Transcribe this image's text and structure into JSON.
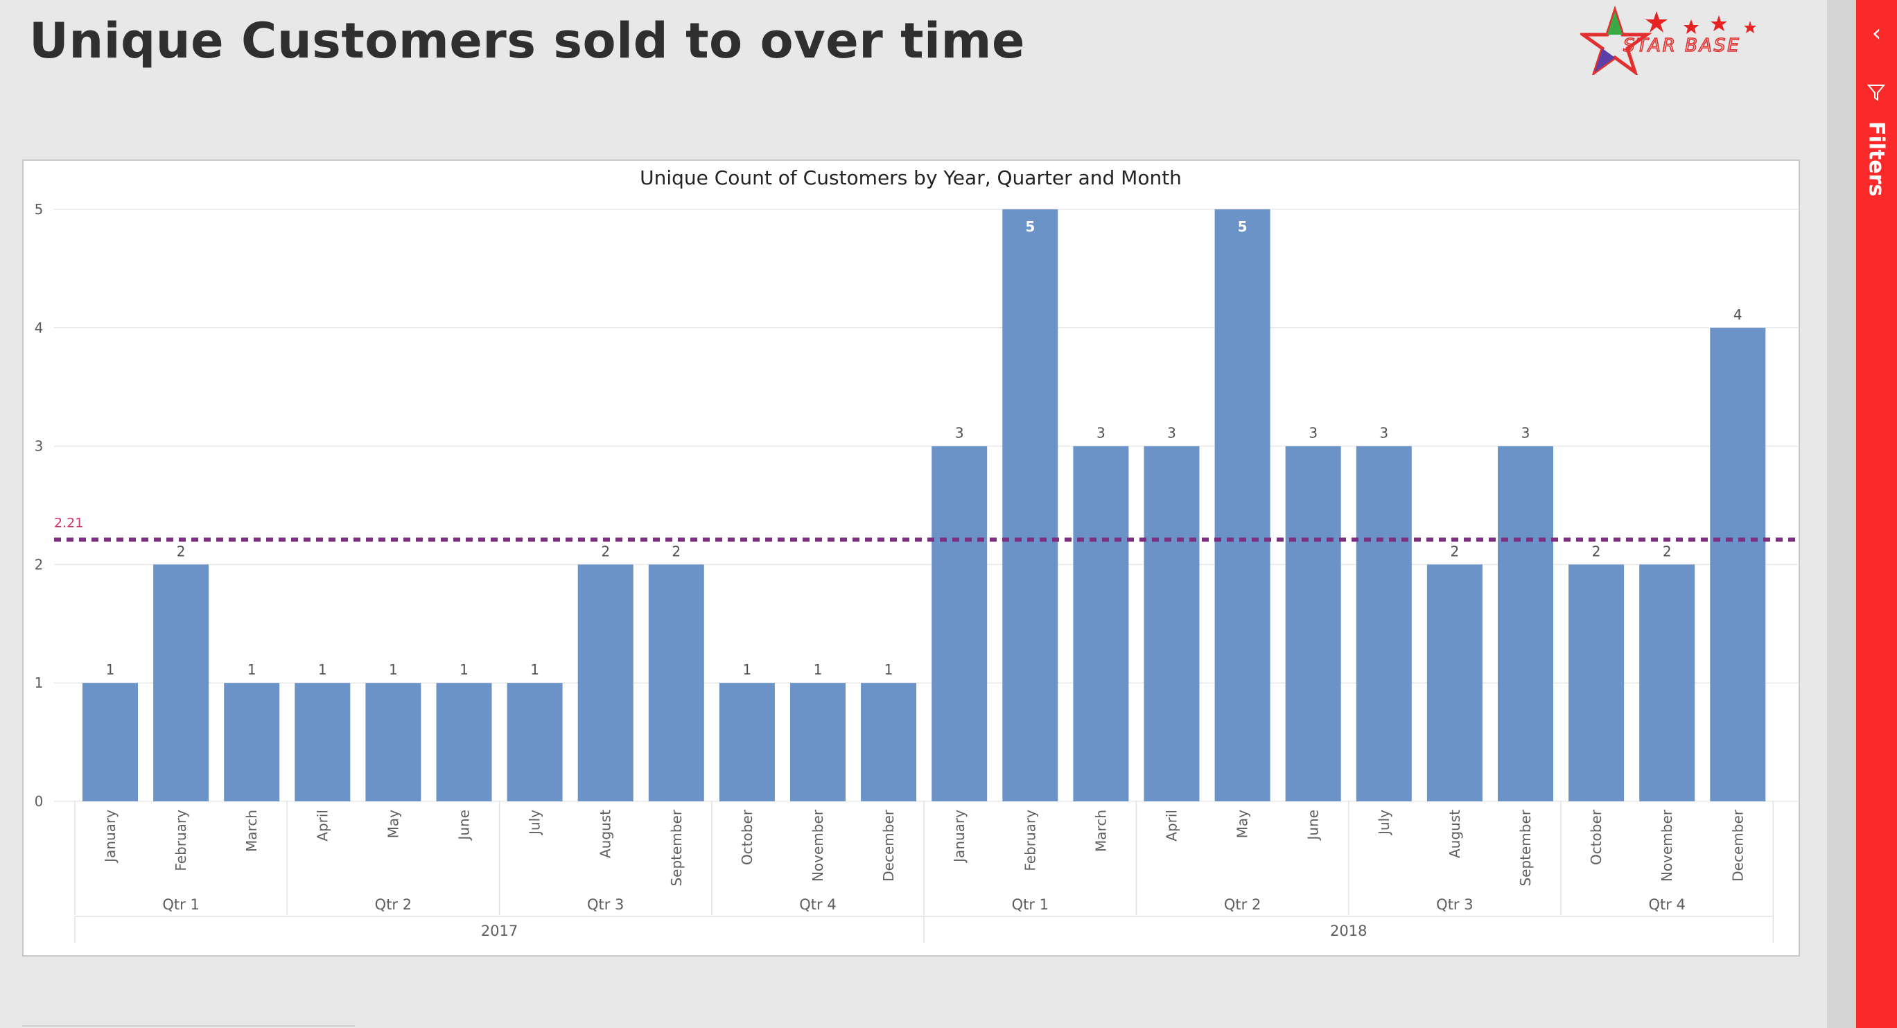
{
  "page": {
    "title": "Unique Customers sold to over time",
    "logo_text": "STAR BASE",
    "filters_label": "Filters"
  },
  "colors": {
    "bar": "#6b93c8",
    "avg_line": "#7b2f7e",
    "avg_label": "#d6306a",
    "filter_pane": "#fa2a2a"
  },
  "chart_data": {
    "type": "bar",
    "title": "Unique Count of Customers by Year, Quarter and Month",
    "ylim": [
      0,
      5
    ],
    "yticks": [
      0,
      1,
      2,
      3,
      4,
      5
    ],
    "grid": true,
    "average_line": {
      "value": 2.21,
      "label": "2.21"
    },
    "categories": [
      "January",
      "February",
      "March",
      "April",
      "May",
      "June",
      "July",
      "August",
      "September",
      "October",
      "November",
      "December",
      "January",
      "February",
      "March",
      "April",
      "May",
      "June",
      "July",
      "August",
      "September",
      "October",
      "November",
      "December"
    ],
    "values": [
      1,
      2,
      1,
      1,
      1,
      1,
      1,
      2,
      2,
      1,
      1,
      1,
      3,
      5,
      3,
      3,
      5,
      3,
      3,
      2,
      3,
      2,
      2,
      4
    ],
    "quarters": [
      {
        "label": "Qtr 1",
        "start": 0,
        "count": 3
      },
      {
        "label": "Qtr 2",
        "start": 3,
        "count": 3
      },
      {
        "label": "Qtr 3",
        "start": 6,
        "count": 3
      },
      {
        "label": "Qtr 4",
        "start": 9,
        "count": 3
      },
      {
        "label": "Qtr 1",
        "start": 12,
        "count": 3
      },
      {
        "label": "Qtr 2",
        "start": 15,
        "count": 3
      },
      {
        "label": "Qtr 3",
        "start": 18,
        "count": 3
      },
      {
        "label": "Qtr 4",
        "start": 21,
        "count": 3
      }
    ],
    "years": [
      {
        "label": "2017",
        "start": 0,
        "count": 12
      },
      {
        "label": "2018",
        "start": 12,
        "count": 12
      }
    ]
  }
}
